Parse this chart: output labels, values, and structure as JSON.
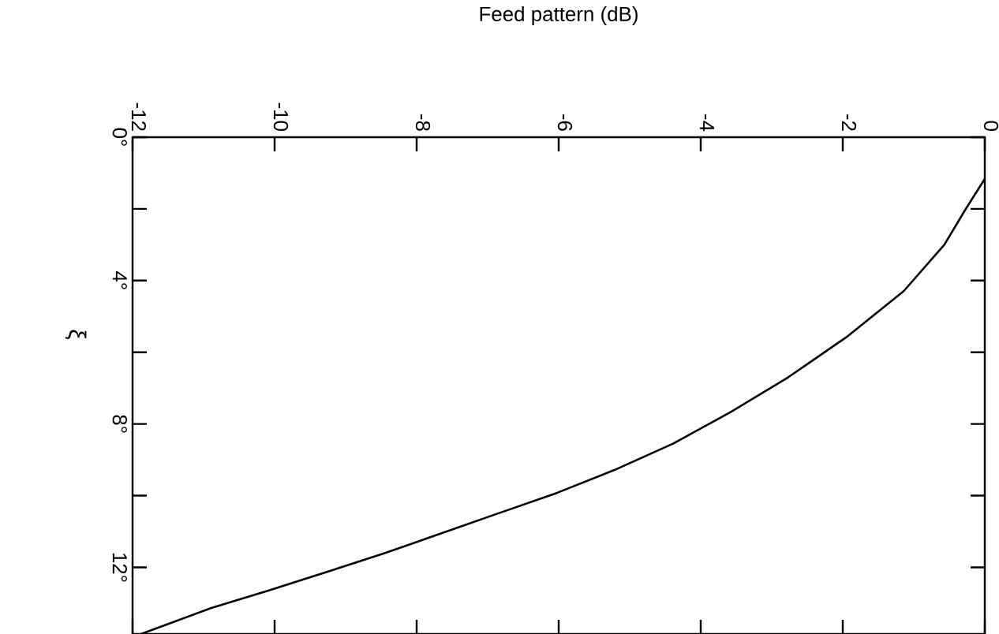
{
  "chart_data": {
    "type": "line",
    "xlabel": "Feed pattern (dB)",
    "ylabel": "ξ",
    "x": [
      0,
      -0.28,
      -0.57,
      -1.14,
      -1.95,
      -2.77,
      -3.58,
      -4.39,
      -5.21,
      -6.02,
      -6.83,
      -7.65,
      -8.46,
      -9.28,
      -10.09,
      -10.9,
      -11.88
    ],
    "series": [
      {
        "color": "#000000",
        "values": [
          1.16,
          2.04,
          3.0,
          4.29,
          5.58,
          6.7,
          7.67,
          8.55,
          9.28,
          9.92,
          10.48,
          11.05,
          11.61,
          12.14,
          12.65,
          13.14,
          13.86
        ]
      }
    ],
    "xlim": [
      -12,
      0
    ],
    "xticks": [
      -12,
      -10,
      -8,
      -6,
      -4,
      -2,
      0
    ],
    "ylim": [
      13.86,
      0
    ],
    "yticks": [
      {
        "value": 0,
        "label": "0°"
      },
      {
        "value": 2,
        "label": null
      },
      {
        "value": 4,
        "label": "4°"
      },
      {
        "value": 6,
        "label": null
      },
      {
        "value": 8,
        "label": "8°"
      },
      {
        "value": 10,
        "label": null
      },
      {
        "value": 12,
        "label": "12°"
      }
    ],
    "grid": false,
    "marker": "none",
    "line_style": "solid"
  }
}
